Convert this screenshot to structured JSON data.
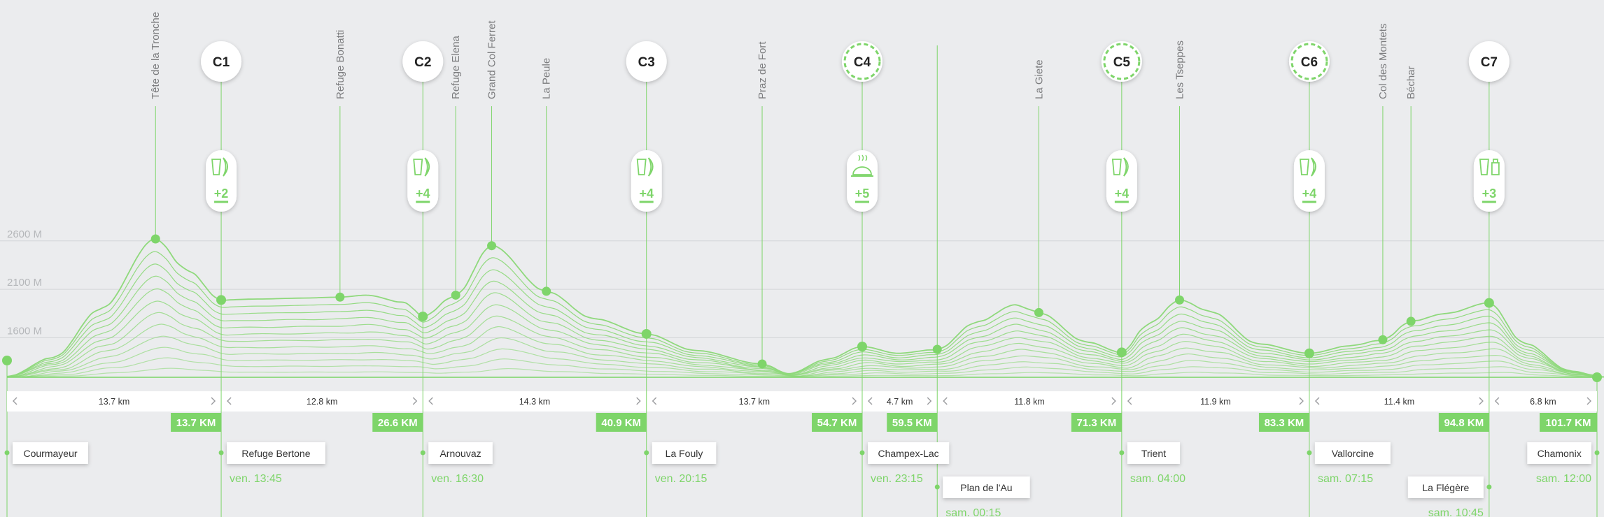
{
  "chart_data": {
    "type": "area",
    "title": "",
    "xlabel": "",
    "ylabel": "",
    "y_ticks": [
      "2600 M",
      "2100 M",
      "1600 M"
    ],
    "y_tick_values": [
      2600,
      2100,
      1600
    ],
    "ylim": [
      1000,
      2900
    ],
    "xlim": [
      0,
      101.7
    ],
    "grid": true,
    "legend": "none",
    "colors": {
      "accent": "#7ed56a",
      "line": "#8fd97c",
      "text": "#6d6e70",
      "grid": "#d3d5d8"
    },
    "profile": [
      {
        "x": 0,
        "y": 1200
      },
      {
        "x": 3,
        "y": 1400
      },
      {
        "x": 6,
        "y": 1900
      },
      {
        "x": 9.5,
        "y": 2620
      },
      {
        "x": 11.5,
        "y": 2300
      },
      {
        "x": 13.7,
        "y": 1990
      },
      {
        "x": 16,
        "y": 2000
      },
      {
        "x": 19,
        "y": 2010
      },
      {
        "x": 21.3,
        "y": 2020
      },
      {
        "x": 23,
        "y": 2040
      },
      {
        "x": 25.5,
        "y": 1960
      },
      {
        "x": 26.6,
        "y": 1820
      },
      {
        "x": 28.7,
        "y": 2040
      },
      {
        "x": 31,
        "y": 2550
      },
      {
        "x": 34.5,
        "y": 2080
      },
      {
        "x": 37.5,
        "y": 1800
      },
      {
        "x": 40.9,
        "y": 1640
      },
      {
        "x": 44,
        "y": 1470
      },
      {
        "x": 48.3,
        "y": 1330
      },
      {
        "x": 50,
        "y": 1230
      },
      {
        "x": 52.5,
        "y": 1380
      },
      {
        "x": 54.7,
        "y": 1510
      },
      {
        "x": 57,
        "y": 1440
      },
      {
        "x": 59.5,
        "y": 1480
      },
      {
        "x": 62,
        "y": 1760
      },
      {
        "x": 64.5,
        "y": 1940
      },
      {
        "x": 66,
        "y": 1860
      },
      {
        "x": 69,
        "y": 1560
      },
      {
        "x": 71.3,
        "y": 1450
      },
      {
        "x": 73,
        "y": 1740
      },
      {
        "x": 75,
        "y": 1990
      },
      {
        "x": 77,
        "y": 1870
      },
      {
        "x": 80,
        "y": 1540
      },
      {
        "x": 83.3,
        "y": 1440
      },
      {
        "x": 86,
        "y": 1520
      },
      {
        "x": 88,
        "y": 1580
      },
      {
        "x": 89.8,
        "y": 1770
      },
      {
        "x": 92,
        "y": 1850
      },
      {
        "x": 94.8,
        "y": 1960
      },
      {
        "x": 97,
        "y": 1550
      },
      {
        "x": 100,
        "y": 1260
      },
      {
        "x": 101.7,
        "y": 1210
      }
    ],
    "summits": [
      {
        "name": "Tête de la Tronche",
        "x": 9.5,
        "y": 2620
      },
      {
        "name": "Refuge Bonatti",
        "x": 21.3,
        "y": 2020
      },
      {
        "name": "Refuge Elena",
        "x": 28.7,
        "y": 2040
      },
      {
        "name": "Grand Col Ferret",
        "x": 31,
        "y": 2550
      },
      {
        "name": "La Peule",
        "x": 34.5,
        "y": 2080
      },
      {
        "name": "Praz de Fort",
        "x": 48.3,
        "y": 1330
      },
      {
        "name": "La Giete",
        "x": 66,
        "y": 1860
      },
      {
        "name": "Les Tseppes",
        "x": 75,
        "y": 1990
      },
      {
        "name": "Col des Montets",
        "x": 88,
        "y": 1580
      },
      {
        "name": "Béchar",
        "x": 89.8,
        "y": 1770
      }
    ],
    "checkpoints": [
      {
        "label": "C1",
        "x": 13.7,
        "y": 1990,
        "style": "solid",
        "supplies": "+2",
        "icon": "drink-fruit-icon"
      },
      {
        "label": "C2",
        "x": 26.6,
        "y": 1820,
        "style": "solid",
        "supplies": "+4",
        "icon": "drink-fruit-icon"
      },
      {
        "label": "C3",
        "x": 40.9,
        "y": 1640,
        "style": "solid",
        "supplies": "+4",
        "icon": "drink-fruit-icon"
      },
      {
        "label": "C4",
        "x": 54.7,
        "y": 1510,
        "style": "dashed",
        "supplies": "+5",
        "icon": "hot-meal-icon"
      },
      {
        "label": "C5",
        "x": 71.3,
        "y": 1450,
        "style": "dashed",
        "supplies": "+4",
        "icon": "drink-fruit-icon"
      },
      {
        "label": "C6",
        "x": 83.3,
        "y": 1440,
        "style": "dashed",
        "supplies": "+4",
        "icon": "drink-fruit-icon"
      },
      {
        "label": "C7",
        "x": 94.8,
        "y": 1960,
        "style": "solid",
        "supplies": "+3",
        "icon": "drink-bottle-icon"
      }
    ],
    "segments": [
      {
        "from": 0,
        "to": 13.7,
        "label": "13.7 km"
      },
      {
        "from": 13.7,
        "to": 26.6,
        "label": "12.8 km"
      },
      {
        "from": 26.6,
        "to": 40.9,
        "label": "14.3 km"
      },
      {
        "from": 40.9,
        "to": 54.7,
        "label": "13.7 km"
      },
      {
        "from": 54.7,
        "to": 59.5,
        "label": "4.7 km"
      },
      {
        "from": 59.5,
        "to": 71.3,
        "label": "11.8 km"
      },
      {
        "from": 71.3,
        "to": 83.3,
        "label": "11.9 km"
      },
      {
        "from": 83.3,
        "to": 94.8,
        "label": "11.4 km"
      },
      {
        "from": 94.8,
        "to": 101.7,
        "label": "6.8 km"
      }
    ],
    "distance_markers": [
      {
        "x": 13.7,
        "label": "13.7 KM"
      },
      {
        "x": 26.6,
        "label": "26.6 KM"
      },
      {
        "x": 40.9,
        "label": "40.9 KM"
      },
      {
        "x": 54.7,
        "label": "54.7 KM"
      },
      {
        "x": 59.5,
        "label": "59.5 KM"
      },
      {
        "x": 71.3,
        "label": "71.3 KM"
      },
      {
        "x": 83.3,
        "label": "83.3 KM"
      },
      {
        "x": 94.8,
        "label": "94.8 KM"
      },
      {
        "x": 101.7,
        "label": "101.7 KM"
      }
    ],
    "places": [
      {
        "name": "Courmayeur",
        "x": 0,
        "time": "",
        "row": 0,
        "align": "right"
      },
      {
        "name": "Refuge Bertone",
        "x": 13.7,
        "time": "ven. 13:45",
        "row": 0,
        "align": "right"
      },
      {
        "name": "Arnouvaz",
        "x": 26.6,
        "time": "ven. 16:30",
        "row": 0,
        "align": "right"
      },
      {
        "name": "La Fouly",
        "x": 40.9,
        "time": "ven. 20:15",
        "row": 0,
        "align": "right"
      },
      {
        "name": "Champex-Lac",
        "x": 54.7,
        "time": "ven. 23:15",
        "row": 0,
        "align": "right"
      },
      {
        "name": "Plan de l'Au",
        "x": 59.5,
        "time": "sam. 00:15",
        "row": 1,
        "align": "right"
      },
      {
        "name": "Trient",
        "x": 71.3,
        "time": "sam. 04:00",
        "row": 0,
        "align": "right"
      },
      {
        "name": "Vallorcine",
        "x": 83.3,
        "time": "sam. 07:15",
        "row": 0,
        "align": "right"
      },
      {
        "name": "La Flégère",
        "x": 94.8,
        "time": "sam. 10:45",
        "row": 1,
        "align": "left"
      },
      {
        "name": "Chamonix",
        "x": 101.7,
        "time": "sam. 12:00",
        "row": 0,
        "align": "left"
      }
    ]
  }
}
